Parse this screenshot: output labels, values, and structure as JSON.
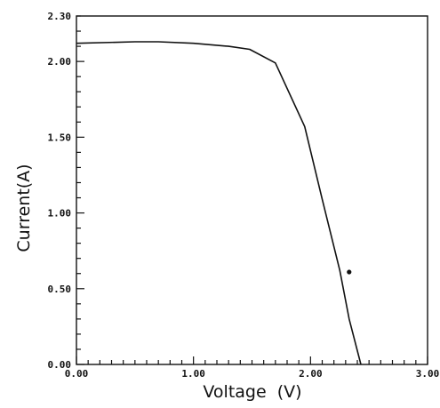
{
  "chart_data": {
    "type": "line",
    "xlabel": "Voltage  (V)",
    "ylabel": "Current(A)",
    "xlim": [
      0,
      3
    ],
    "ylim": [
      0,
      2.3
    ],
    "x_ticks": [
      "0.00",
      "1.00",
      "2.00",
      "3.00"
    ],
    "y_ticks": [
      "0.00",
      "0.50",
      "1.00",
      "1.50",
      "2.00",
      "2.30"
    ],
    "grid": false,
    "legend": "none",
    "series": [
      {
        "x": [
          0.0,
          0.5,
          0.7,
          1.0,
          1.3,
          1.48,
          1.7,
          1.95,
          2.1,
          2.25,
          2.33,
          2.43
        ],
        "y": [
          2.12,
          2.13,
          2.13,
          2.12,
          2.1,
          2.08,
          1.99,
          1.57,
          1.09,
          0.62,
          0.3,
          0.0
        ]
      }
    ],
    "markers": [
      {
        "x": 2.33,
        "y": 0.61
      }
    ]
  }
}
